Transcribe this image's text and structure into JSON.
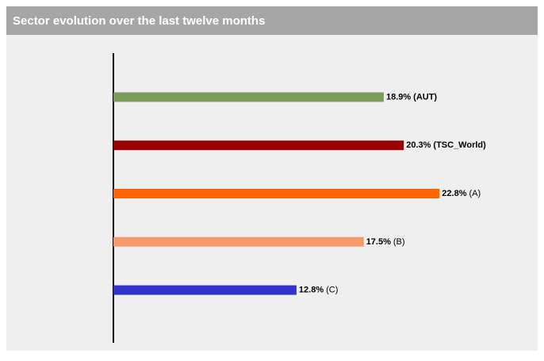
{
  "header": {
    "title": "Sector evolution over the last twelve months"
  },
  "chart_data": {
    "type": "bar",
    "orientation": "horizontal",
    "categories": [
      "(AUT)",
      "(TSC_World)",
      "(A)",
      "(B)",
      "(C)"
    ],
    "values": [
      18.9,
      20.3,
      22.8,
      17.5,
      12.8
    ],
    "value_labels": [
      "18.9%",
      "20.3%",
      "22.8%",
      "17.5%",
      "12.8%"
    ],
    "colors": [
      "#7a9e5a",
      "#990000",
      "#ff6600",
      "#f79a6b",
      "#3333cc"
    ],
    "bold_categories": [
      true,
      true,
      false,
      false,
      false
    ],
    "xlim": [
      0,
      25
    ]
  }
}
